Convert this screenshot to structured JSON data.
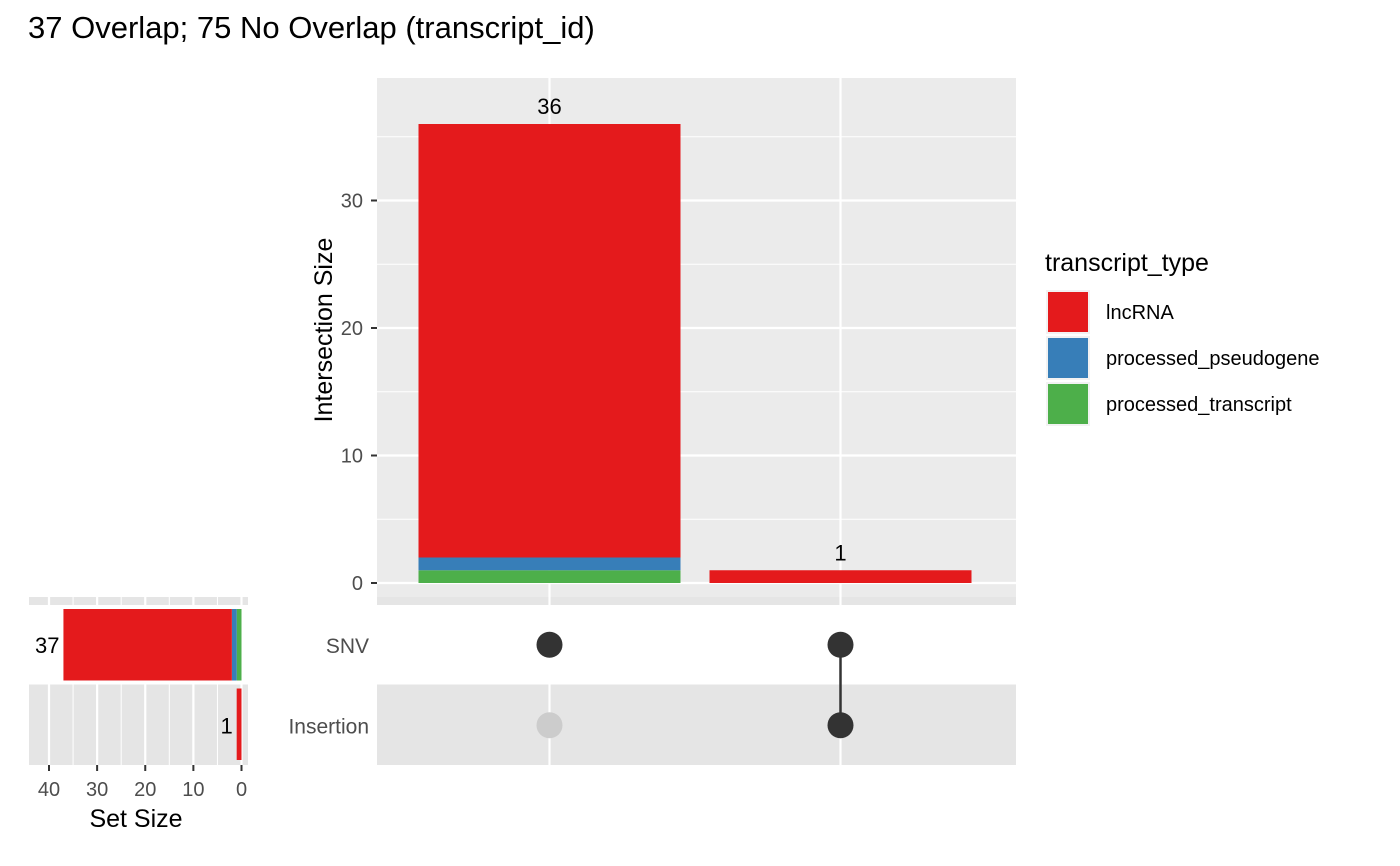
{
  "title": "37 Overlap; 75 No Overlap (transcript_id)",
  "chart_data": {
    "type": "bar",
    "subtype": "upset",
    "intersections": [
      {
        "sets": [
          "SNV"
        ],
        "total": 36,
        "segments": [
          {
            "type": "processed_transcript",
            "value": 1
          },
          {
            "type": "processed_pseudogene",
            "value": 1
          },
          {
            "type": "lncRNA",
            "value": 34
          }
        ]
      },
      {
        "sets": [
          "SNV",
          "Insertion"
        ],
        "total": 1,
        "segments": [
          {
            "type": "lncRNA",
            "value": 1
          }
        ]
      }
    ],
    "sets": [
      {
        "name": "SNV",
        "size": 37,
        "segments": [
          {
            "type": "processed_transcript",
            "value": 1
          },
          {
            "type": "processed_pseudogene",
            "value": 1
          },
          {
            "type": "lncRNA",
            "value": 35
          }
        ]
      },
      {
        "name": "Insertion",
        "size": 1,
        "segments": [
          {
            "type": "lncRNA",
            "value": 1
          }
        ]
      }
    ],
    "ylabel": "Intersection Size",
    "yticks": [
      0,
      10,
      20,
      30
    ],
    "ylim": [
      0,
      39
    ],
    "set_size_label": "Set Size",
    "set_size_ticks": [
      40,
      30,
      20,
      10,
      0
    ],
    "set_size_lim": [
      45,
      0
    ],
    "legend": {
      "title": "transcript_type",
      "position": "right",
      "items": [
        {
          "label": "lncRNA",
          "color": "#E41A1C"
        },
        {
          "label": "processed_pseudogene",
          "color": "#377EB8"
        },
        {
          "label": "processed_transcript",
          "color": "#4DAF4A"
        }
      ]
    },
    "grid": true,
    "colors": {
      "panel": "#EBEBEB",
      "grid": "#FFFFFF",
      "dot": "#333333",
      "dot_inactive": "#CCCCCC",
      "stripe": "#E5E5E5"
    }
  }
}
